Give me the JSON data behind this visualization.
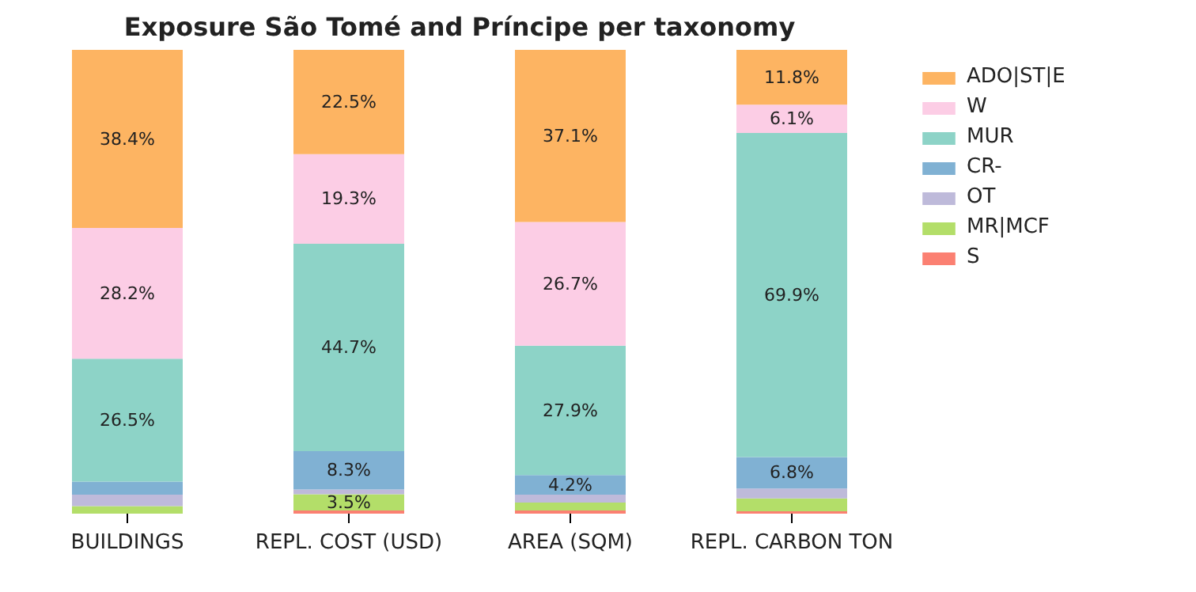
{
  "chart_data": {
    "type": "bar",
    "stacked": true,
    "title": "Exposure São Tomé and Príncipe per taxonomy",
    "categories": [
      "BUILDINGS",
      "REPL. COST (USD)",
      "AREA (SQM)",
      "REPL. CARBON TON"
    ],
    "series": [
      {
        "name": "S",
        "color": "#fb8072",
        "values": [
          0,
          0.7,
          0.7,
          0.5
        ],
        "value_labels": [
          null,
          null,
          null,
          null
        ]
      },
      {
        "name": "MR|MCF",
        "color": "#b3de69",
        "values": [
          1.6,
          3.5,
          1.7,
          2.8
        ],
        "value_labels": [
          null,
          "3.5%",
          null,
          null
        ]
      },
      {
        "name": "OT",
        "color": "#bebada",
        "values": [
          2.5,
          1.0,
          1.7,
          2.1
        ],
        "value_labels": [
          null,
          null,
          null,
          null
        ]
      },
      {
        "name": "CR-",
        "color": "#80b1d3",
        "values": [
          2.8,
          8.3,
          4.2,
          6.8
        ],
        "value_labels": [
          null,
          "8.3%",
          "4.2%",
          "6.8%"
        ]
      },
      {
        "name": "MUR",
        "color": "#8dd3c7",
        "values": [
          26.5,
          44.7,
          27.9,
          69.9
        ],
        "value_labels": [
          "26.5%",
          "44.7%",
          "27.9%",
          "69.9%"
        ]
      },
      {
        "name": "W",
        "color": "#fccde5",
        "values": [
          28.2,
          19.3,
          26.7,
          6.1
        ],
        "value_labels": [
          "28.2%",
          "19.3%",
          "26.7%",
          "6.1%"
        ]
      },
      {
        "name": "ADO|ST|E",
        "color": "#fdb462",
        "values": [
          38.4,
          22.5,
          37.1,
          11.8
        ],
        "value_labels": [
          "38.4%",
          "22.5%",
          "37.1%",
          "11.8%"
        ]
      }
    ],
    "legend": "top right",
    "grid": false,
    "tick_labels": "x"
  }
}
